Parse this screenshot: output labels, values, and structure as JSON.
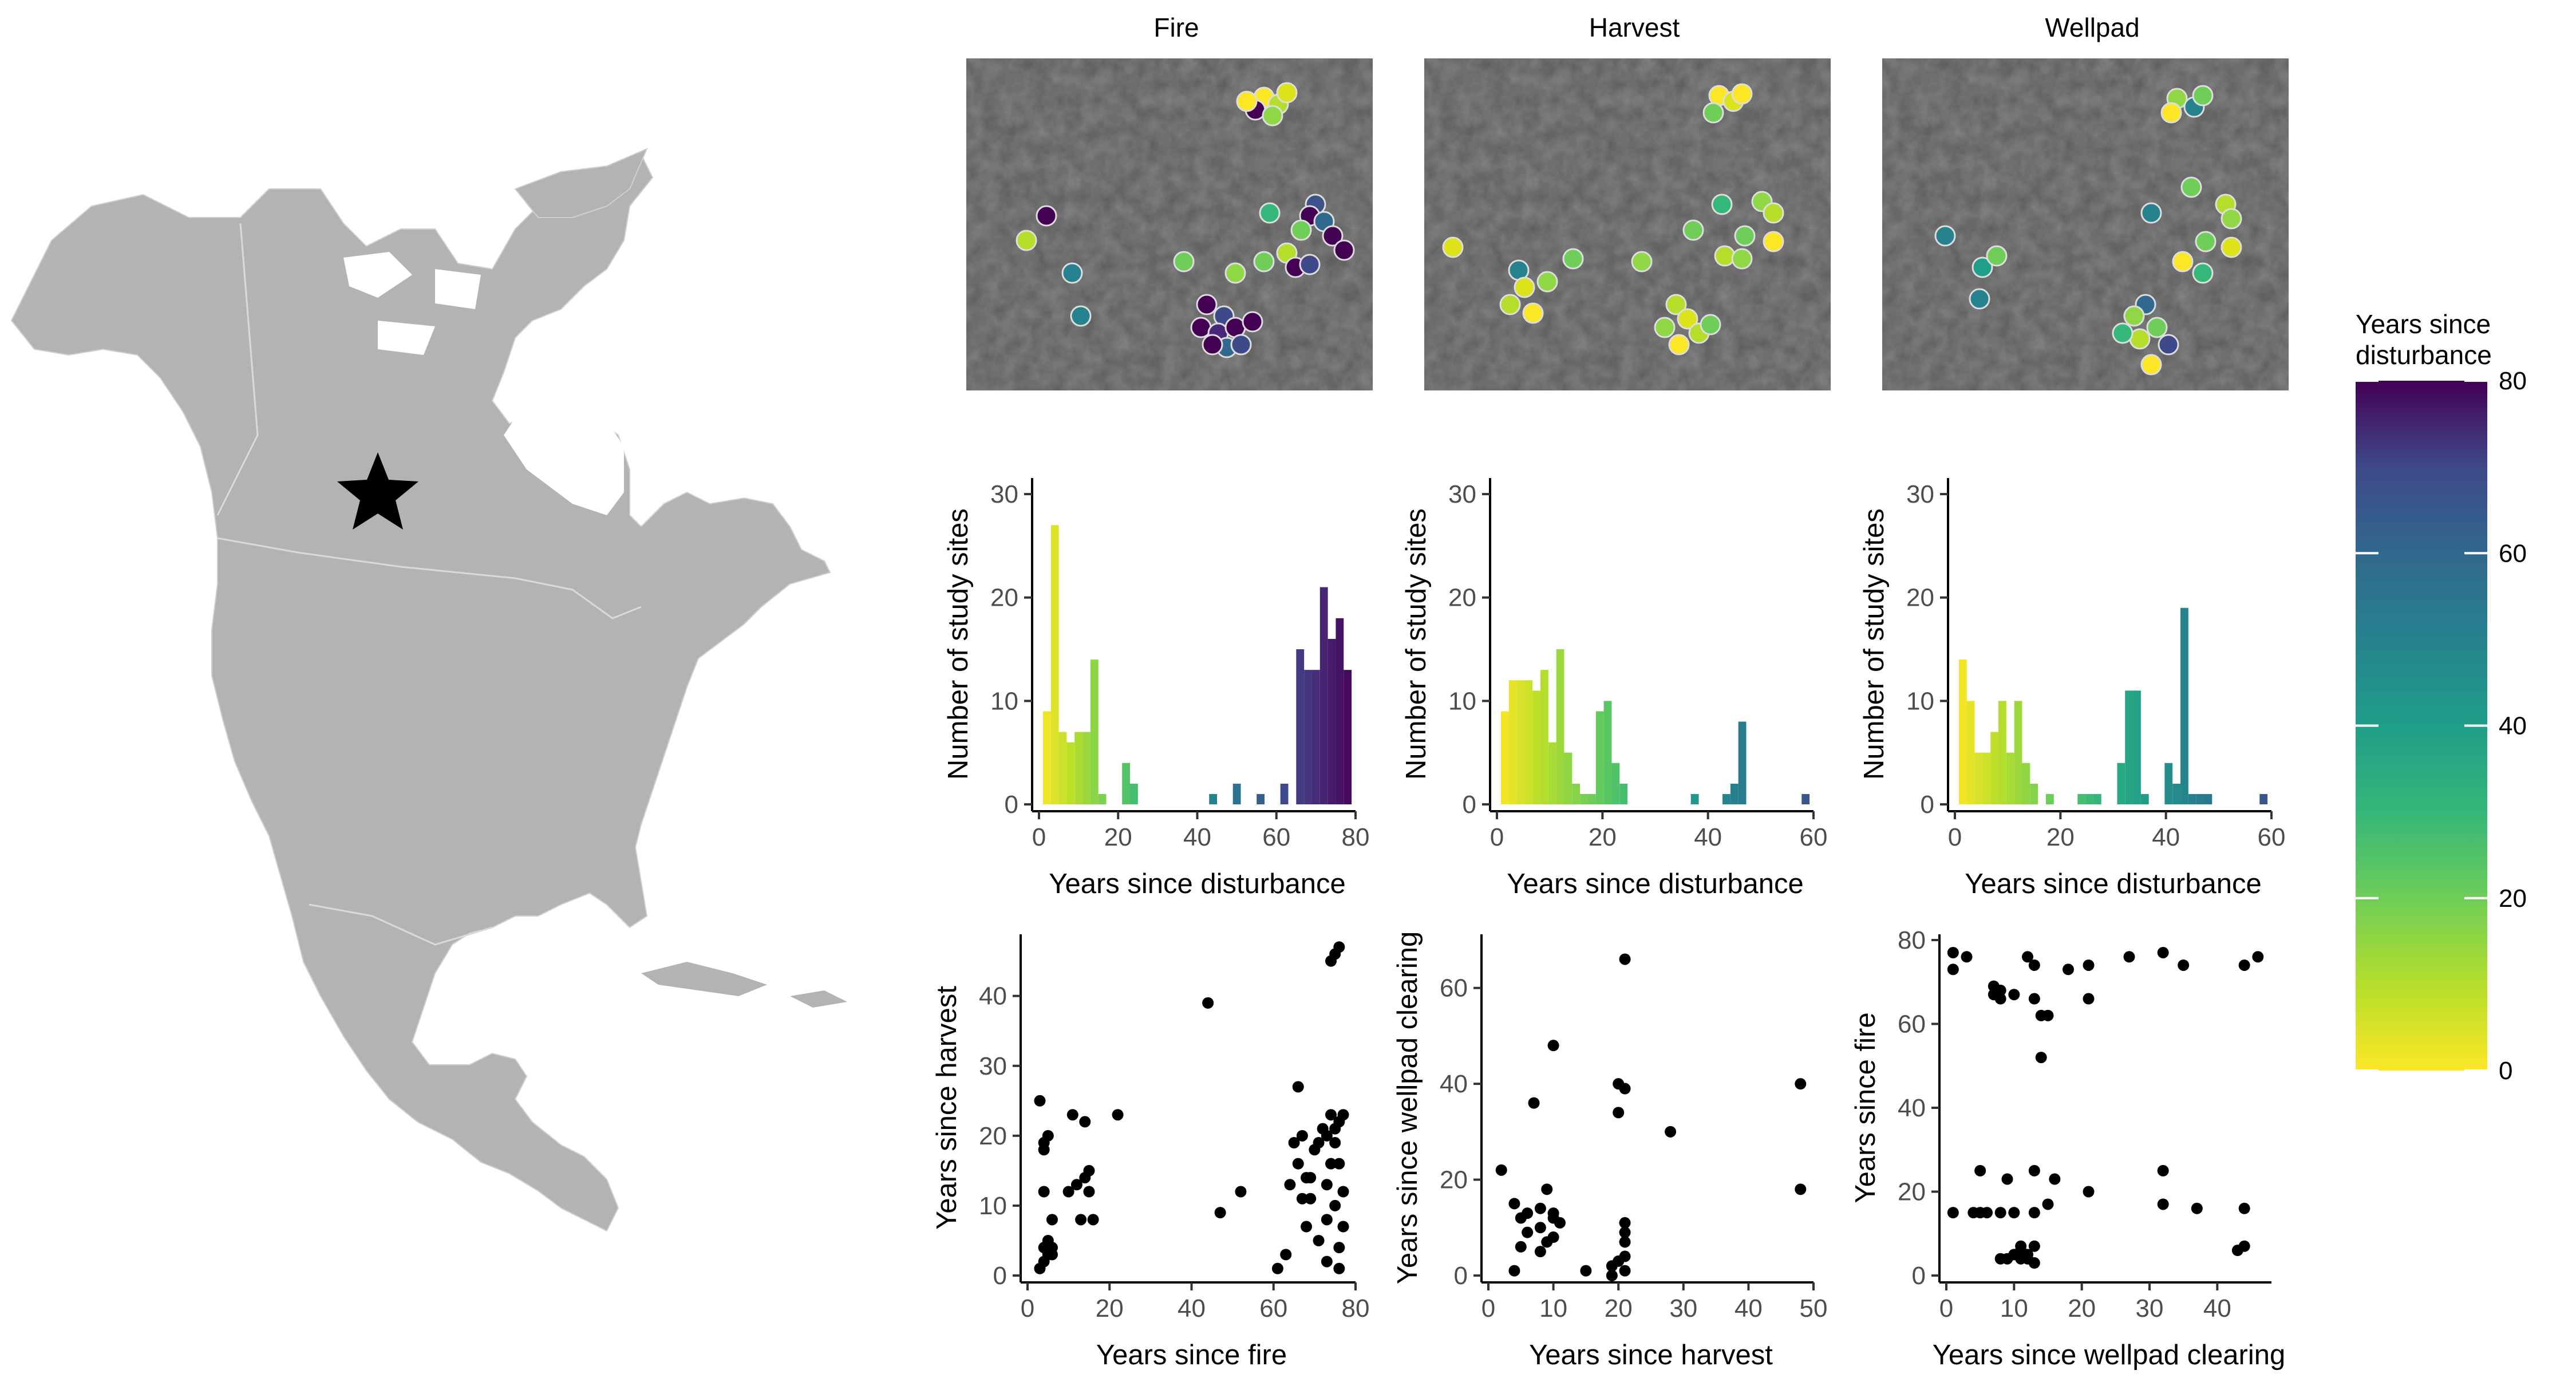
{
  "figure": {
    "panel_titles": [
      "Fire",
      "Harvest",
      "Wellpad"
    ],
    "legend": {
      "title_line1": "Years since",
      "title_line2": "disturbance",
      "ticks": [
        "0",
        "20",
        "40",
        "60",
        "80"
      ],
      "min": 0,
      "max": 80
    },
    "map": {
      "region": "North America",
      "marker": "star-icon"
    }
  },
  "chart_data": [
    {
      "type": "bar",
      "panel": "Fire",
      "xlabel": "Years since disturbance",
      "ylabel": "Number of study sites",
      "xlim": [
        0,
        80
      ],
      "ylim": [
        0,
        31
      ],
      "xticks": [
        "0",
        "20",
        "40",
        "60",
        "80"
      ],
      "yticks": [
        "0",
        "10",
        "20",
        "30"
      ],
      "bins": [
        [
          2,
          9
        ],
        [
          4,
          27
        ],
        [
          6,
          7
        ],
        [
          8,
          6
        ],
        [
          10,
          7
        ],
        [
          12,
          7
        ],
        [
          14,
          14
        ],
        [
          16,
          1
        ],
        [
          22,
          4
        ],
        [
          24,
          2
        ],
        [
          44,
          1
        ],
        [
          50,
          2
        ],
        [
          56,
          1
        ],
        [
          62,
          2
        ],
        [
          66,
          15
        ],
        [
          68,
          13
        ],
        [
          70,
          13
        ],
        [
          72,
          21
        ],
        [
          74,
          16
        ],
        [
          76,
          18
        ],
        [
          78,
          13
        ]
      ]
    },
    {
      "type": "bar",
      "panel": "Harvest",
      "xlabel": "Years since disturbance",
      "ylabel": "Number of study sites",
      "xlim": [
        0,
        60
      ],
      "ylim": [
        0,
        31
      ],
      "xticks": [
        "0",
        "20",
        "40",
        "60"
      ],
      "yticks": [
        "0",
        "10",
        "20",
        "30"
      ],
      "bins": [
        [
          1.5,
          9
        ],
        [
          3,
          12
        ],
        [
          4.5,
          12
        ],
        [
          6,
          12
        ],
        [
          7.5,
          11
        ],
        [
          9,
          13
        ],
        [
          10.5,
          6
        ],
        [
          12,
          15
        ],
        [
          13.5,
          5
        ],
        [
          15,
          2
        ],
        [
          16.5,
          1
        ],
        [
          18,
          1
        ],
        [
          19.5,
          9
        ],
        [
          21,
          10
        ],
        [
          22.5,
          4
        ],
        [
          24,
          2
        ],
        [
          37.5,
          1
        ],
        [
          43.5,
          1
        ],
        [
          45,
          2
        ],
        [
          46.5,
          8
        ],
        [
          58.5,
          1
        ]
      ]
    },
    {
      "type": "bar",
      "panel": "Wellpad",
      "xlabel": "Years since disturbance",
      "ylabel": "Number of study sites",
      "xlim": [
        0,
        60
      ],
      "ylim": [
        0,
        31
      ],
      "xticks": [
        "0",
        "20",
        "40",
        "60"
      ],
      "yticks": [
        "0",
        "10",
        "20",
        "30"
      ],
      "bins": [
        [
          1.5,
          14
        ],
        [
          3,
          10
        ],
        [
          4.5,
          5
        ],
        [
          6,
          5
        ],
        [
          7.5,
          7
        ],
        [
          9,
          10
        ],
        [
          10.5,
          5
        ],
        [
          12,
          10
        ],
        [
          13.5,
          4
        ],
        [
          15,
          2
        ],
        [
          18,
          1
        ],
        [
          24,
          1
        ],
        [
          25.5,
          1
        ],
        [
          27,
          1
        ],
        [
          31.5,
          4
        ],
        [
          33,
          11
        ],
        [
          34.5,
          11
        ],
        [
          36,
          1
        ],
        [
          40.5,
          4
        ],
        [
          42,
          2
        ],
        [
          43.5,
          19
        ],
        [
          45,
          1
        ],
        [
          46.5,
          1
        ],
        [
          48,
          1
        ],
        [
          58.5,
          1
        ]
      ]
    },
    {
      "type": "scatter",
      "xlabel": "Years since fire",
      "ylabel": "Years since harvest",
      "xlim": [
        0,
        80
      ],
      "ylim": [
        0,
        48
      ],
      "xticks": [
        "0",
        "20",
        "40",
        "60",
        "80"
      ],
      "yticks": [
        "0",
        "10",
        "20",
        "30",
        "40"
      ],
      "points": [
        [
          3,
          25
        ],
        [
          3,
          1
        ],
        [
          4,
          18
        ],
        [
          4,
          19
        ],
        [
          4,
          4
        ],
        [
          4,
          2
        ],
        [
          4,
          12
        ],
        [
          5,
          20
        ],
        [
          5,
          5
        ],
        [
          5,
          3
        ],
        [
          6,
          4
        ],
        [
          6,
          8
        ],
        [
          6,
          3
        ],
        [
          10,
          12
        ],
        [
          11,
          23
        ],
        [
          12,
          13
        ],
        [
          13,
          8
        ],
        [
          14,
          14
        ],
        [
          14,
          22
        ],
        [
          15,
          15
        ],
        [
          15,
          12
        ],
        [
          16,
          8
        ],
        [
          22,
          23
        ],
        [
          44,
          39
        ],
        [
          47,
          9
        ],
        [
          52,
          12
        ],
        [
          61,
          1
        ],
        [
          63,
          3
        ],
        [
          64,
          13
        ],
        [
          65,
          19
        ],
        [
          66,
          27
        ],
        [
          66,
          16
        ],
        [
          67,
          11
        ],
        [
          67,
          20
        ],
        [
          68,
          14
        ],
        [
          68,
          7
        ],
        [
          69,
          11
        ],
        [
          69,
          14
        ],
        [
          70,
          18
        ],
        [
          71,
          5
        ],
        [
          71,
          19
        ],
        [
          72,
          21
        ],
        [
          73,
          20
        ],
        [
          73,
          8
        ],
        [
          73,
          2
        ],
        [
          73,
          13
        ],
        [
          74,
          45
        ],
        [
          74,
          23
        ],
        [
          74,
          16
        ],
        [
          75,
          46
        ],
        [
          75,
          21
        ],
        [
          75,
          19
        ],
        [
          75,
          10
        ],
        [
          76,
          47
        ],
        [
          76,
          4
        ],
        [
          76,
          1
        ],
        [
          76,
          16
        ],
        [
          76,
          22
        ],
        [
          77,
          7
        ],
        [
          77,
          23
        ],
        [
          77,
          12
        ]
      ]
    },
    {
      "type": "scatter",
      "xlabel": "Years since harvest",
      "ylabel": "Years since wellpad clearing",
      "xlim": [
        0,
        50
      ],
      "ylim": [
        0,
        70
      ],
      "xticks": [
        "0",
        "10",
        "20",
        "30",
        "40",
        "50"
      ],
      "yticks": [
        "0",
        "20",
        "40",
        "60"
      ],
      "points": [
        [
          2,
          22
        ],
        [
          4,
          15
        ],
        [
          4,
          1
        ],
        [
          5,
          6
        ],
        [
          5,
          12
        ],
        [
          6,
          13
        ],
        [
          6,
          9
        ],
        [
          7,
          36
        ],
        [
          8,
          10
        ],
        [
          8,
          5
        ],
        [
          8,
          14
        ],
        [
          9,
          7
        ],
        [
          9,
          18
        ],
        [
          10,
          12
        ],
        [
          10,
          8
        ],
        [
          10,
          48
        ],
        [
          10,
          13
        ],
        [
          11,
          11
        ],
        [
          15,
          1
        ],
        [
          19,
          0
        ],
        [
          19,
          2
        ],
        [
          20,
          34
        ],
        [
          20,
          40
        ],
        [
          20,
          3
        ],
        [
          21,
          66
        ],
        [
          21,
          39
        ],
        [
          21,
          1
        ],
        [
          21,
          11
        ],
        [
          21,
          9
        ],
        [
          21,
          7
        ],
        [
          21,
          4
        ],
        [
          28,
          30
        ],
        [
          48,
          40
        ],
        [
          48,
          18
        ]
      ]
    },
    {
      "type": "scatter",
      "xlabel": "Years since wellpad clearing",
      "ylabel": "Years since fire",
      "xlim": [
        0,
        48
      ],
      "ylim": [
        0,
        80
      ],
      "xticks": [
        "0",
        "10",
        "20",
        "30",
        "40"
      ],
      "yticks": [
        "0",
        "20",
        "40",
        "60",
        "80"
      ],
      "points": [
        [
          1,
          77
        ],
        [
          1,
          73
        ],
        [
          1,
          15
        ],
        [
          3,
          76
        ],
        [
          4,
          15
        ],
        [
          5,
          25
        ],
        [
          5,
          15
        ],
        [
          6,
          15
        ],
        [
          7,
          69
        ],
        [
          7,
          67
        ],
        [
          8,
          68
        ],
        [
          8,
          15
        ],
        [
          8,
          66
        ],
        [
          8,
          4
        ],
        [
          9,
          23
        ],
        [
          9,
          4
        ],
        [
          10,
          67
        ],
        [
          10,
          5
        ],
        [
          10,
          15
        ],
        [
          11,
          7
        ],
        [
          11,
          4
        ],
        [
          11,
          6
        ],
        [
          12,
          76
        ],
        [
          12,
          5
        ],
        [
          12,
          4
        ],
        [
          13,
          66
        ],
        [
          13,
          74
        ],
        [
          13,
          25
        ],
        [
          13,
          7
        ],
        [
          13,
          3
        ],
        [
          13,
          15
        ],
        [
          14,
          52
        ],
        [
          14,
          62
        ],
        [
          15,
          62
        ],
        [
          15,
          17
        ],
        [
          16,
          23
        ],
        [
          18,
          73
        ],
        [
          21,
          74
        ],
        [
          21,
          66
        ],
        [
          21,
          20
        ],
        [
          27,
          76
        ],
        [
          32,
          77
        ],
        [
          32,
          25
        ],
        [
          32,
          17
        ],
        [
          35,
          74
        ],
        [
          37,
          16
        ],
        [
          43,
          6
        ],
        [
          44,
          7
        ],
        [
          44,
          74
        ],
        [
          44,
          16
        ],
        [
          46,
          76
        ]
      ]
    }
  ]
}
